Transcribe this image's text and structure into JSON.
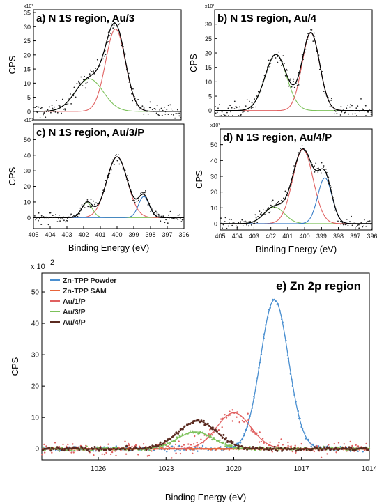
{
  "chart_data": [
    {
      "id": "a",
      "type": "line",
      "title": "a) N 1S region, Au/3",
      "ylabel": "CPS",
      "xlabel": "",
      "multiplier": "x10¹",
      "xlim": [
        405,
        396
      ],
      "ylim": [
        -3,
        36
      ],
      "yticks": [
        0,
        5,
        10,
        15,
        20,
        25,
        30,
        35
      ],
      "xticks": [],
      "peaks": [
        {
          "name": "",
          "color": "#7cc15a",
          "center": 401.6,
          "height": 11.5,
          "width": 0.85
        },
        {
          "name": "",
          "color": "#e06262",
          "center": 400.0,
          "height": 29.2,
          "width": 0.6
        }
      ],
      "envelope_color": "#000000",
      "noise": 2.0
    },
    {
      "id": "b",
      "type": "line",
      "title": "b) N 1S region, Au/4",
      "ylabel": "CPS",
      "xlabel": "",
      "multiplier": "x10¹",
      "xlim": [
        405,
        396
      ],
      "ylim": [
        -2,
        35
      ],
      "yticks": [
        0,
        5,
        10,
        15,
        20,
        25,
        30
      ],
      "xticks": [],
      "peaks": [
        {
          "name": "",
          "color": "#7cc15a",
          "center": 401.5,
          "height": 19.5,
          "width": 0.62
        },
        {
          "name": "",
          "color": "#e06262",
          "center": 399.5,
          "height": 27.0,
          "width": 0.5
        }
      ],
      "envelope_color": "#000000",
      "noise": 2.2
    },
    {
      "id": "c",
      "type": "line",
      "title": "c) N 1S region, Au/3/P",
      "ylabel": "CPS",
      "xlabel": "Binding Energy (eV)",
      "multiplier": "x10¹",
      "xlim": [
        405,
        396
      ],
      "ylim": [
        -7,
        60
      ],
      "yticks": [
        0,
        10,
        20,
        30,
        40,
        50
      ],
      "xticks": [
        405,
        404,
        403,
        402,
        401,
        400,
        399,
        398,
        397,
        396
      ],
      "peaks": [
        {
          "name": "",
          "color": "#7cc15a",
          "center": 401.8,
          "height": 9.5,
          "width": 0.32
        },
        {
          "name": "",
          "color": "#e06262",
          "center": 400.0,
          "height": 39.0,
          "width": 0.62
        },
        {
          "name": "",
          "color": "#3a7ec8",
          "center": 398.4,
          "height": 13.5,
          "width": 0.32
        }
      ],
      "envelope_color": "#000000",
      "noise": 2.5
    },
    {
      "id": "d",
      "type": "line",
      "title": "d) N 1S region, Au/4/P",
      "ylabel": "CPS",
      "xlabel": "Binding Energy (eV)",
      "multiplier": "x10¹",
      "xlim": [
        405,
        396
      ],
      "ylim": [
        -4,
        60
      ],
      "yticks": [
        0,
        10,
        20,
        30,
        40,
        50
      ],
      "xticks": [
        405,
        404,
        403,
        402,
        401,
        400,
        399,
        398,
        397,
        396
      ],
      "peaks": [
        {
          "name": "",
          "color": "#7cc15a",
          "center": 401.8,
          "height": 10.5,
          "width": 0.6
        },
        {
          "name": "",
          "color": "#e06262",
          "center": 400.1,
          "height": 47.0,
          "width": 0.6
        },
        {
          "name": "",
          "color": "#3a7ec8",
          "center": 398.8,
          "height": 29.0,
          "width": 0.42
        }
      ],
      "envelope_color": "#000000",
      "noise": 2.6
    },
    {
      "id": "e",
      "type": "line",
      "title": "e) Zn 2p region",
      "ylabel": "CPS",
      "xlabel": "Binding Energy (eV)",
      "multiplier": "x 10",
      "multiplier_exp": "2",
      "xlim": [
        1028.5,
        1014
      ],
      "ylim": [
        -3.5,
        56
      ],
      "yticks": [
        0,
        10,
        20,
        30,
        40,
        50
      ],
      "xticks": [
        1026,
        1023,
        1020,
        1017,
        1014
      ],
      "legend_position": "top-left",
      "series": [
        {
          "name": "Zn-TPP Powder",
          "color": "#4a8fd0",
          "center": 1018.2,
          "height": 47.5,
          "width": 0.62
        },
        {
          "name": "Zn-TPP SAM",
          "color": "#e8643a",
          "center": 1020.0,
          "height": 0.0,
          "width": 0.8
        },
        {
          "name": "Au/1/P",
          "color": "#e06060",
          "center": 1020.0,
          "height": 11.5,
          "width": 0.75
        },
        {
          "name": "Au/3/P",
          "color": "#7cc15a",
          "center": 1021.7,
          "height": 5.4,
          "width": 0.8
        },
        {
          "name": "Au/4/P",
          "color": "#5a2a20",
          "center": 1021.6,
          "height": 8.8,
          "width": 0.85
        }
      ]
    }
  ]
}
